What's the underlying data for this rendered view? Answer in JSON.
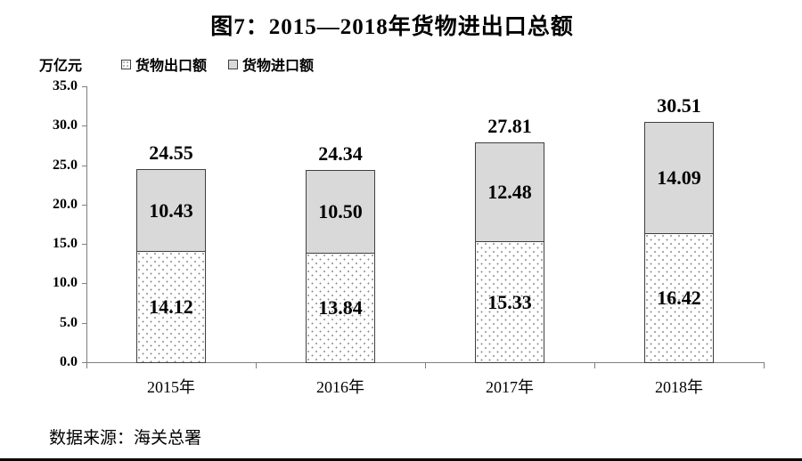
{
  "title": "图7：2015—2018年货物进出口总额",
  "y_unit_label": "万亿元",
  "legend": [
    {
      "label": "货物出口额",
      "swatch": "dotted-pattern"
    },
    {
      "label": "货物进口额",
      "swatch": "gray-fill"
    }
  ],
  "source": "数据来源：海关总署",
  "colors": {
    "import_fill": "#d9d9d9",
    "export_fill": "#ffffff",
    "dot_color": "#8c8c8c",
    "segment_border": "#404040",
    "axis": "#7f7f7f",
    "text": "#000000"
  },
  "chart_data": {
    "type": "bar",
    "stacked": true,
    "title": "图7：2015—2018年货物进出口总额",
    "ylabel": "万亿元",
    "xlabel": "",
    "categories": [
      "2015年",
      "2016年",
      "2017年",
      "2018年"
    ],
    "series": [
      {
        "name": "货物出口额",
        "style": "dotted",
        "values": [
          14.12,
          13.84,
          15.33,
          16.42
        ],
        "value_labels": [
          "14.12",
          "13.84",
          "15.33",
          "16.42"
        ]
      },
      {
        "name": "货物进口额",
        "style": "gray",
        "values": [
          10.43,
          10.5,
          12.48,
          14.09
        ],
        "value_labels": [
          "10.43",
          "10.50",
          "12.48",
          "14.09"
        ]
      }
    ],
    "totals": [
      24.55,
      24.34,
      27.81,
      30.51
    ],
    "total_labels": [
      "24.55",
      "24.34",
      "27.81",
      "30.51"
    ],
    "ylim": [
      0,
      35
    ],
    "ytick_step": 5,
    "ytick_labels": [
      "0.0",
      "5.0",
      "10.0",
      "15.0",
      "20.0",
      "25.0",
      "30.0",
      "35.0"
    ],
    "grid": false,
    "legend_position": "top-left"
  }
}
